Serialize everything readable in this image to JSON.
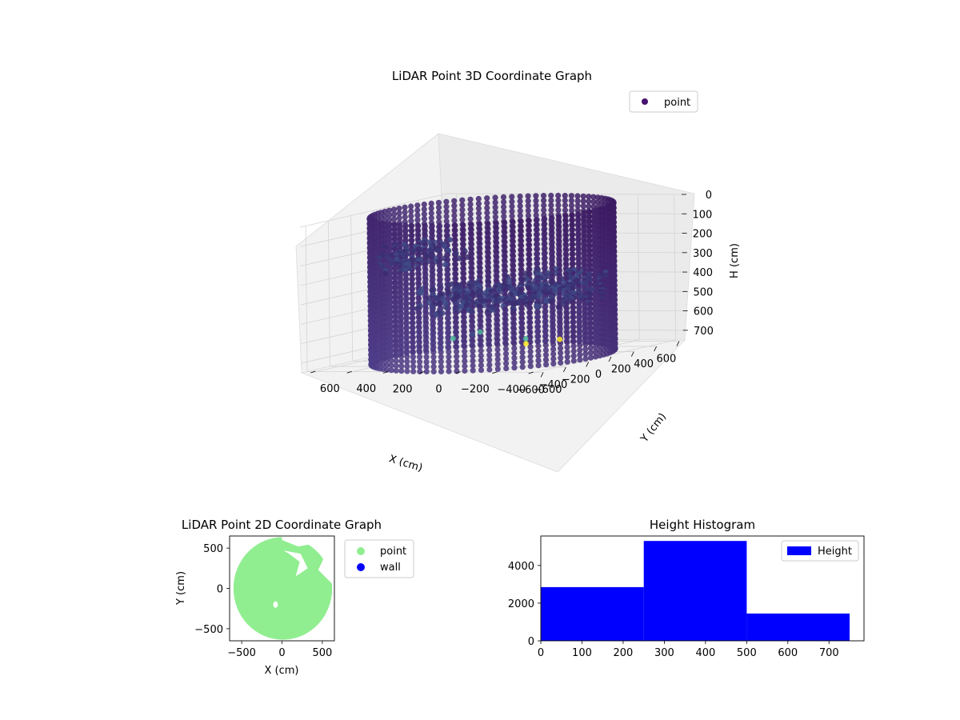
{
  "chart_data": [
    {
      "type": "scatter",
      "projection": "3d",
      "title": "LiDAR Point 3D Coordinate Graph",
      "xlabel": "X (cm)",
      "ylabel": "Y (cm)",
      "zlabel": "H (cm)",
      "x_ticks": [
        "−600",
        "−400",
        "−200",
        "0",
        "200",
        "400",
        "600"
      ],
      "y_ticks": [
        "−600",
        "−400",
        "−200",
        "0",
        "200",
        "400",
        "600"
      ],
      "z_ticks": [
        "0",
        "100",
        "200",
        "300",
        "400",
        "500",
        "600",
        "700"
      ],
      "xlim": [
        -650,
        650
      ],
      "ylim": [
        -650,
        650
      ],
      "zlim": [
        750,
        0
      ],
      "z_inverted": true,
      "colormap": "viridis",
      "legend": {
        "placement": "top-right",
        "entries": [
          {
            "label": "point",
            "color": "#46136e"
          }
        ]
      },
      "series": [
        {
          "name": "point",
          "shape": "cylinder-wall",
          "radius": 600,
          "h_range": [
            0,
            750
          ],
          "color_range": [
            "#3b1960",
            "#4f3f8a"
          ]
        },
        {
          "name": "point",
          "shape": "floor-cloud",
          "h_approx": 400,
          "color": "#3f4e8a"
        },
        {
          "name": "point",
          "shape": "outliers",
          "points": [
            {
              "x": 560,
              "y": 420,
              "h": 700,
              "color": "#4cb49a"
            },
            {
              "x": 620,
              "y": 500,
              "h": 720,
              "color": "#3f4e8a"
            },
            {
              "x": 640,
              "y": 620,
              "h": 745,
              "color": "#4cb49a"
            },
            {
              "x": 450,
              "y": 100,
              "h": 745,
              "color": "#fde725"
            },
            {
              "x": 640,
              "y": 220,
              "h": 745,
              "color": "#4cb49a"
            },
            {
              "x": 620,
              "y": 20,
              "h": 745,
              "color": "#fde725"
            }
          ]
        }
      ],
      "grid": true
    },
    {
      "type": "scatter",
      "title": "LiDAR Point 2D Coordinate Graph",
      "xlabel": "X (cm)",
      "ylabel": "Y (cm)",
      "x_ticks": [
        -500,
        0,
        500
      ],
      "y_ticks": [
        -500,
        0,
        500
      ],
      "xlim": [
        -650,
        650
      ],
      "ylim": [
        -650,
        650
      ],
      "legend": {
        "placement": "outside-right",
        "entries": [
          {
            "label": "point",
            "color": "#90ee90"
          },
          {
            "label": "wall",
            "color": "#0000ff"
          }
        ]
      },
      "series": [
        {
          "name": "point",
          "shape": "disc",
          "radius": 600,
          "color": "#90ee90"
        },
        {
          "name": "wall",
          "color": "#0000ff",
          "points": []
        }
      ]
    },
    {
      "type": "bar",
      "title": "Height Histogram",
      "legend": {
        "placement": "top-right",
        "entries": [
          {
            "label": "Height",
            "color": "#0000ff"
          }
        ]
      },
      "bins": [
        {
          "start": 0,
          "end": 250,
          "count": 2850
        },
        {
          "start": 250,
          "end": 500,
          "count": 5300
        },
        {
          "start": 500,
          "end": 750,
          "count": 1450
        }
      ],
      "color": "#0000ff",
      "x_ticks": [
        0,
        100,
        200,
        300,
        400,
        500,
        600,
        700
      ],
      "y_ticks": [
        0,
        2000,
        4000
      ],
      "xlim": [
        0,
        785
      ],
      "ylim": [
        0,
        5565
      ]
    }
  ]
}
